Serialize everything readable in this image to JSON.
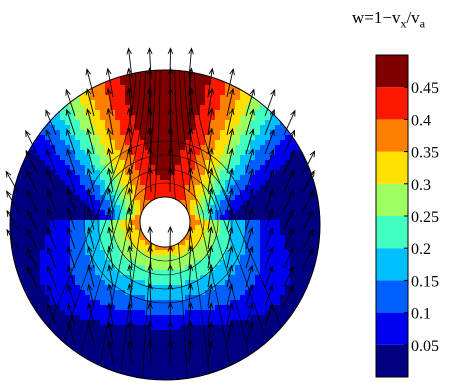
{
  "chart_data": {
    "type": "filled-contour",
    "colorbar": {
      "title_prefix": "w=1−v",
      "title_sub_x": "x",
      "title_slash": "/v",
      "title_sub_a": "a",
      "levels": [
        0,
        0.05,
        0.1,
        0.15,
        0.2,
        0.25,
        0.3,
        0.35,
        0.4,
        0.45,
        0.5
      ],
      "tick_labels": [
        "0.05",
        "0.1",
        "0.15",
        "0.2",
        "0.25",
        "0.3",
        "0.35",
        "0.4",
        "0.45"
      ],
      "colors": [
        "#000080",
        "#0000f0",
        "#0060ff",
        "#00c0ff",
        "#40ffc0",
        "#a0ff60",
        "#ffe000",
        "#ff8000",
        "#ff1800",
        "#800000"
      ]
    },
    "overlay": "velocity vectors (quiver) and contour lines on circular domain with inner cylinder"
  }
}
